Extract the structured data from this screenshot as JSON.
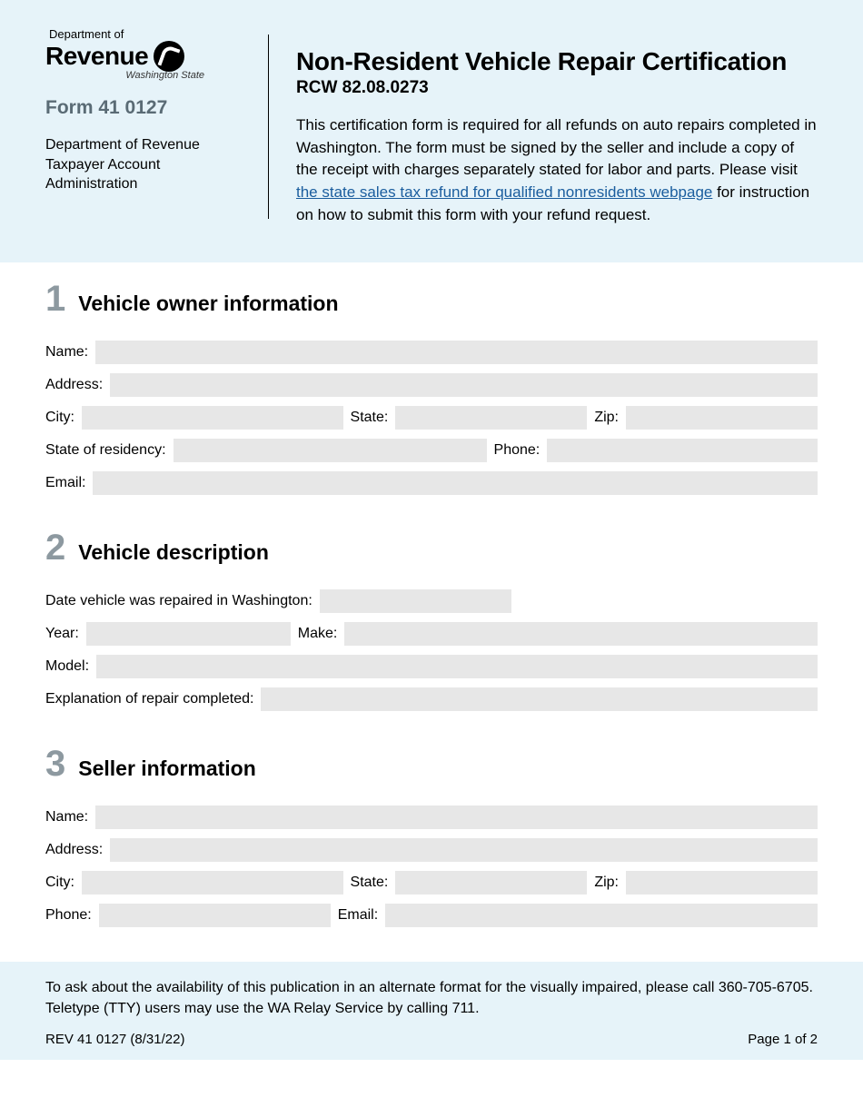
{
  "colors": {
    "header_bg": "#e6f3f9",
    "input_bg": "#e7e7e7",
    "section_num": "#8d99a0",
    "form_num": "#5a6b75",
    "link": "#1a5d9e"
  },
  "logo": {
    "top": "Department of",
    "main": "Revenue",
    "sub": "Washington State"
  },
  "form_number": "Form 41 0127",
  "dept_line1": "Department of Revenue",
  "dept_line2": "Taxpayer Account",
  "dept_line3": "Administration",
  "title": "Non-Resident Vehicle Repair Certification",
  "subtitle": "RCW 82.08.0273",
  "intro_before_link": "This certification form is required for all refunds on auto repairs completed in Washington. The form must be signed by the seller and include a copy of the receipt with charges separately stated for labor and parts. Please visit ",
  "intro_link_text": "the state sales tax refund for qualified nonresidents webpage",
  "intro_after_link": " for instruction on how to submit this form with your refund request.",
  "sections": {
    "s1": {
      "num": "1",
      "title": "Vehicle owner information"
    },
    "s2": {
      "num": "2",
      "title": "Vehicle description"
    },
    "s3": {
      "num": "3",
      "title": "Seller information"
    }
  },
  "labels": {
    "name": "Name:",
    "address": "Address:",
    "city": "City:",
    "state": "State:",
    "zip": "Zip:",
    "residency": "State of residency:",
    "phone": "Phone:",
    "email": "Email:",
    "repair_date": "Date vehicle was repaired in Washington:",
    "year": "Year:",
    "make": "Make:",
    "model": "Model:",
    "explanation": "Explanation of repair completed:"
  },
  "footer": {
    "accessibility": "To ask about the availability of this publication in an alternate format for the visually impaired, please call 360-705-6705. Teletype (TTY) users may use the WA Relay Service by calling 711.",
    "rev": "REV 41 0127  (8/31/22)",
    "page": "Page 1 of 2"
  }
}
